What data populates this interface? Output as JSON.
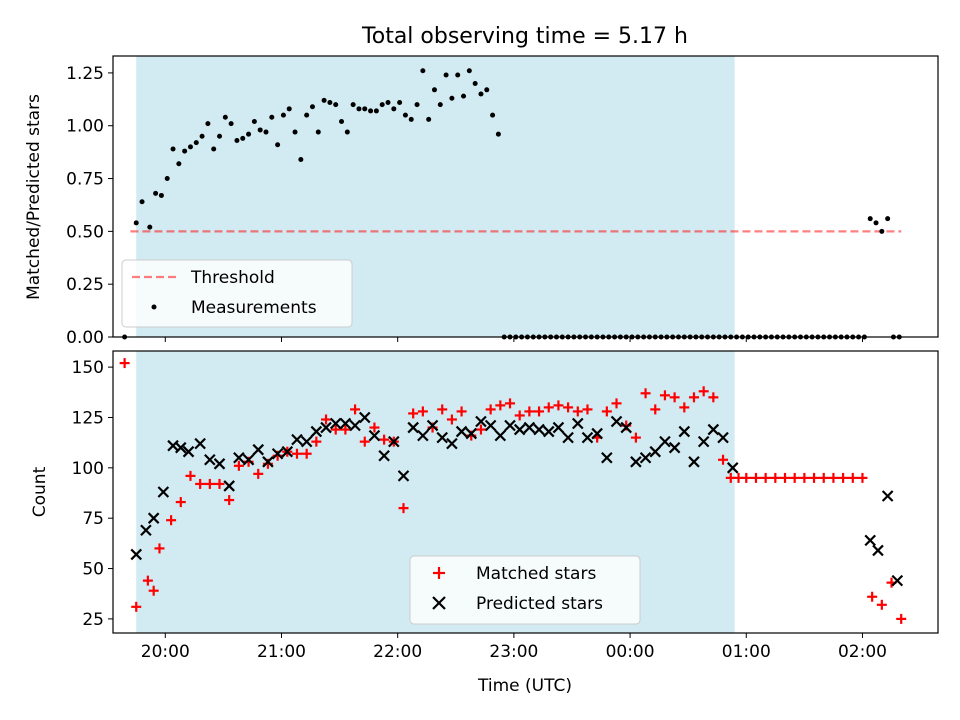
{
  "figure": {
    "title": "Total observing time = 5.17 h"
  },
  "colors": {
    "span": "#add8e6",
    "threshold": "#ff0000",
    "matched": "#ff0000",
    "predicted": "#000000",
    "measurement": "#000000"
  },
  "chart_data": [
    {
      "type": "scatter",
      "panel": "top",
      "ylabel": "Matched/Predicted stars",
      "xlabel": "",
      "ylim": [
        0,
        1.33
      ],
      "xlim": [
        "19:33",
        "02:39"
      ],
      "yticks": [
        0.0,
        0.25,
        0.5,
        0.75,
        1.0,
        1.25
      ],
      "ytick_labels": [
        "0.00",
        "0.25",
        "0.50",
        "0.75",
        "1.00",
        "1.25"
      ],
      "shaded_span": [
        "19:45",
        "00:54"
      ],
      "threshold": {
        "name": "Threshold",
        "value": 0.5,
        "x": [
          "19:42",
          "02:20"
        ],
        "style": "dashed"
      },
      "legend": {
        "placement": "lower left",
        "entries": [
          "Threshold",
          "Measurements"
        ]
      },
      "series": [
        {
          "name": "Measurements",
          "x": [
            "19:39",
            "19:45",
            "19:48",
            "19:52",
            "19:55",
            "19:58",
            "20:01",
            "20:04",
            "20:07",
            "20:10",
            "20:13",
            "20:16",
            "20:19",
            "20:22",
            "20:25",
            "20:28",
            "20:31",
            "20:34",
            "20:37",
            "20:40",
            "20:43",
            "20:46",
            "20:49",
            "20:52",
            "20:55",
            "20:58",
            "21:01",
            "21:04",
            "21:07",
            "21:10",
            "21:13",
            "21:16",
            "21:19",
            "21:22",
            "21:25",
            "21:28",
            "21:31",
            "21:34",
            "21:37",
            "21:40",
            "21:43",
            "21:46",
            "21:49",
            "21:52",
            "21:55",
            "21:58",
            "22:01",
            "22:04",
            "22:07",
            "22:10",
            "22:13",
            "22:16",
            "22:19",
            "22:22",
            "22:25",
            "22:28",
            "22:31",
            "22:34",
            "22:37",
            "22:40",
            "22:43",
            "22:46",
            "22:49",
            "22:52",
            "22:55",
            "22:58",
            "23:01",
            "23:04",
            "23:07",
            "23:10",
            "23:13",
            "23:16",
            "23:19",
            "23:22",
            "23:25",
            "23:28",
            "23:31",
            "23:34",
            "23:37",
            "23:40",
            "23:43",
            "23:46",
            "23:49",
            "23:52",
            "23:55",
            "23:58",
            "00:01",
            "00:04",
            "00:07",
            "00:10",
            "00:13",
            "00:16",
            "00:19",
            "00:22",
            "00:25",
            "00:28",
            "00:31",
            "00:34",
            "00:37",
            "00:40",
            "00:43",
            "00:46",
            "00:49",
            "00:52",
            "00:55",
            "00:58",
            "01:01",
            "01:04",
            "01:07",
            "01:10",
            "01:13",
            "01:16",
            "01:19",
            "01:22",
            "01:25",
            "01:28",
            "01:31",
            "01:34",
            "01:37",
            "01:40",
            "01:43",
            "01:46",
            "01:49",
            "01:52",
            "01:55",
            "01:58",
            "02:01",
            "02:04",
            "02:07",
            "02:10",
            "02:13",
            "02:16",
            "02:19"
          ],
          "y": [
            0.0,
            0.54,
            0.64,
            0.52,
            0.68,
            0.67,
            0.75,
            0.89,
            0.82,
            0.88,
            0.9,
            0.92,
            0.95,
            1.01,
            0.89,
            0.95,
            1.04,
            1.01,
            0.93,
            0.94,
            0.96,
            1.02,
            0.98,
            0.97,
            1.04,
            0.91,
            1.05,
            1.08,
            0.97,
            0.84,
            1.05,
            1.09,
            0.97,
            1.12,
            1.11,
            1.1,
            1.02,
            0.97,
            1.1,
            1.08,
            1.08,
            1.07,
            1.07,
            1.1,
            1.11,
            1.08,
            1.11,
            1.05,
            1.03,
            1.1,
            1.26,
            1.03,
            1.17,
            1.1,
            1.24,
            1.13,
            1.24,
            1.14,
            1.26,
            1.2,
            1.15,
            1.17,
            1.05,
            0.96,
            0.0,
            0.0,
            0.0,
            0.0,
            0.0,
            0.0,
            0.0,
            0.0,
            0.0,
            0.0,
            0.0,
            0.0,
            0.0,
            0.0,
            0.0,
            0.0,
            0.0,
            0.0,
            0.0,
            0.0,
            0.0,
            0.0,
            0.0,
            0.0,
            0.0,
            0.0,
            0.0,
            0.0,
            0.0,
            0.0,
            0.0,
            0.0,
            0.0,
            0.0,
            0.0,
            0.0,
            0.0,
            0.0,
            0.0,
            0.0,
            0.0,
            0.0,
            0.0,
            0.0,
            0.0,
            0.0,
            0.0,
            0.0,
            0.0,
            0.0,
            0.0,
            0.0,
            0.0,
            0.0,
            0.0,
            0.0,
            0.0,
            0.0,
            0.0,
            0.0,
            0.0,
            0.0,
            0.0,
            0.56,
            0.54,
            0.5,
            0.56,
            0.0,
            0.0
          ]
        }
      ]
    },
    {
      "type": "scatter",
      "panel": "bottom",
      "xlabel": "Time (UTC)",
      "ylabel": "Count",
      "ylim": [
        18,
        158
      ],
      "xlim": [
        "19:33",
        "02:39"
      ],
      "yticks": [
        25,
        50,
        75,
        100,
        125,
        150
      ],
      "ytick_labels": [
        "25",
        "50",
        "75",
        "100",
        "125",
        "150"
      ],
      "xticks": [
        "20:00",
        "21:00",
        "22:00",
        "23:00",
        "00:00",
        "01:00",
        "02:00"
      ],
      "xtick_labels": [
        "20:00",
        "21:00",
        "22:00",
        "23:00",
        "00:00",
        "01:00",
        "02:00"
      ],
      "shaded_span": [
        "19:45",
        "00:54"
      ],
      "legend": {
        "placement": "lower center",
        "entries": [
          "Matched stars",
          "Predicted stars"
        ]
      },
      "series": [
        {
          "name": "Matched stars",
          "marker": "+",
          "x": [
            "19:39",
            "19:45",
            "19:51",
            "19:54",
            "19:57",
            "20:03",
            "20:08",
            "20:13",
            "20:18",
            "20:23",
            "20:28",
            "20:33",
            "20:38",
            "20:43",
            "20:48",
            "20:53",
            "20:58",
            "21:03",
            "21:08",
            "21:13",
            "21:18",
            "21:23",
            "21:28",
            "21:33",
            "21:38",
            "21:43",
            "21:48",
            "21:53",
            "21:58",
            "22:03",
            "22:08",
            "22:13",
            "22:18",
            "22:23",
            "22:28",
            "22:33",
            "22:38",
            "22:43",
            "22:48",
            "22:53",
            "22:58",
            "23:03",
            "23:08",
            "23:13",
            "23:18",
            "23:23",
            "23:28",
            "23:33",
            "23:38",
            "23:43",
            "23:48",
            "23:53",
            "23:58",
            "00:03",
            "00:08",
            "00:13",
            "00:18",
            "00:23",
            "00:28",
            "00:33",
            "00:38",
            "00:43",
            "00:48",
            "00:52",
            "00:56",
            "01:00",
            "01:05",
            "01:10",
            "01:15",
            "01:20",
            "01:25",
            "01:30",
            "01:35",
            "01:40",
            "01:45",
            "01:50",
            "01:55",
            "02:00",
            "02:05",
            "02:10",
            "02:15",
            "02:20"
          ],
          "y": [
            152,
            31,
            44,
            39,
            60,
            74,
            83,
            96,
            92,
            92,
            92,
            84,
            101,
            103,
            97,
            102,
            106,
            108,
            107,
            107,
            113,
            124,
            119,
            119,
            129,
            113,
            120,
            114,
            113,
            80,
            127,
            128,
            120,
            129,
            124,
            128,
            116,
            119,
            129,
            131,
            132,
            126,
            128,
            128,
            130,
            131,
            130,
            128,
            129,
            115,
            128,
            132,
            121,
            115,
            137,
            129,
            136,
            135,
            130,
            135,
            138,
            135,
            104,
            95,
            95,
            95,
            95,
            95,
            95,
            95,
            95,
            95,
            95,
            95,
            95,
            95,
            95,
            95,
            36,
            32,
            43,
            25
          ]
        },
        {
          "name": "Predicted stars",
          "marker": "x",
          "x": [
            "19:45",
            "19:50",
            "19:54",
            "19:59",
            "20:04",
            "20:08",
            "20:12",
            "20:18",
            "20:23",
            "20:28",
            "20:33",
            "20:38",
            "20:43",
            "20:48",
            "20:53",
            "20:58",
            "21:03",
            "21:08",
            "21:13",
            "21:18",
            "21:23",
            "21:28",
            "21:33",
            "21:38",
            "21:43",
            "21:48",
            "21:53",
            "21:58",
            "22:03",
            "22:08",
            "22:13",
            "22:18",
            "22:23",
            "22:28",
            "22:33",
            "22:38",
            "22:43",
            "22:48",
            "22:53",
            "22:58",
            "23:03",
            "23:08",
            "23:13",
            "23:18",
            "23:23",
            "23:28",
            "23:33",
            "23:38",
            "23:43",
            "23:48",
            "23:53",
            "23:58",
            "00:03",
            "00:08",
            "00:13",
            "00:18",
            "00:23",
            "00:28",
            "00:33",
            "00:38",
            "00:43",
            "00:48",
            "00:53",
            "02:04",
            "02:08",
            "02:13",
            "02:18"
          ],
          "y": [
            57,
            69,
            75,
            88,
            111,
            110,
            108,
            112,
            104,
            102,
            91,
            105,
            104,
            109,
            103,
            107,
            108,
            114,
            113,
            118,
            120,
            122,
            122,
            121,
            125,
            116,
            106,
            113,
            96,
            120,
            116,
            121,
            115,
            112,
            118,
            117,
            123,
            121,
            116,
            121,
            119,
            120,
            119,
            118,
            120,
            115,
            122,
            115,
            117,
            105,
            123,
            120,
            103,
            105,
            108,
            113,
            110,
            118,
            103,
            113,
            119,
            115,
            100,
            64,
            59,
            86,
            44
          ]
        }
      ]
    }
  ]
}
